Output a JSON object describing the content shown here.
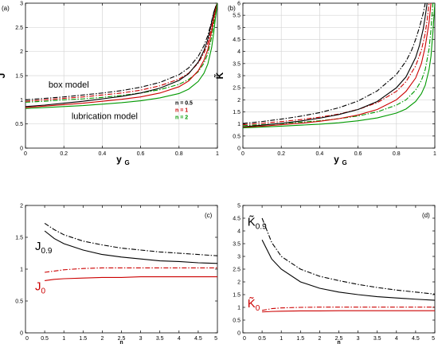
{
  "colors": {
    "n05": "#000000",
    "n1": "#cc0000",
    "n2": "#009900",
    "grid": "#d6d6d6",
    "frame": "#000000"
  },
  "chart_data": [
    {
      "type": "line",
      "panel_label": "(a)",
      "xlabel": "y",
      "xlabel_sub": "G",
      "ylabel": "J",
      "xlim": [
        0,
        1
      ],
      "ylim": [
        0,
        3
      ],
      "xticks": [
        0,
        0.2,
        0.4,
        0.6,
        0.8,
        1
      ],
      "xtick_labels": [
        "0",
        "0.2",
        "0.4",
        "0.6",
        "0.8",
        "1"
      ],
      "yticks": [
        0,
        0.5,
        1,
        1.5,
        2,
        2.5,
        3
      ],
      "ytick_labels": [
        "0",
        "0.5",
        "1",
        "1.5",
        "2",
        "2.5",
        "3"
      ],
      "grid": true,
      "annotations": [
        {
          "text": "box model",
          "x": 0.12,
          "y": 1.25
        },
        {
          "text": "lubrication model",
          "x": 0.24,
          "y": 0.6
        }
      ],
      "legend": {
        "placement": "lower-right",
        "entries": [
          {
            "label": "n = 0.5",
            "color": "#000000"
          },
          {
            "label": "n = 1",
            "color": "#cc0000"
          },
          {
            "label": "n = 2",
            "color": "#009900"
          }
        ]
      },
      "series": [
        {
          "model": "box",
          "n": 0.5,
          "color": "#000000",
          "dash": "dashdot",
          "x": [
            0,
            0.1,
            0.2,
            0.3,
            0.4,
            0.5,
            0.6,
            0.7,
            0.8,
            0.85,
            0.9,
            0.93,
            0.95,
            0.97,
            0.98,
            0.99,
            1.0
          ],
          "y": [
            1.0,
            1.03,
            1.06,
            1.1,
            1.14,
            1.19,
            1.26,
            1.36,
            1.52,
            1.66,
            1.9,
            2.12,
            2.33,
            2.63,
            2.8,
            2.92,
            3.0
          ]
        },
        {
          "model": "box",
          "n": 1,
          "color": "#cc0000",
          "dash": "dashdot",
          "x": [
            0,
            0.1,
            0.2,
            0.3,
            0.4,
            0.5,
            0.6,
            0.7,
            0.8,
            0.85,
            0.9,
            0.93,
            0.95,
            0.97,
            0.98,
            0.99,
            1.0
          ],
          "y": [
            0.97,
            1.0,
            1.03,
            1.06,
            1.1,
            1.14,
            1.2,
            1.29,
            1.43,
            1.55,
            1.76,
            1.97,
            2.17,
            2.5,
            2.7,
            2.88,
            3.0
          ]
        },
        {
          "model": "box",
          "n": 2,
          "color": "#009900",
          "dash": "dashdot",
          "x": [
            0,
            0.1,
            0.2,
            0.3,
            0.4,
            0.5,
            0.6,
            0.7,
            0.8,
            0.85,
            0.9,
            0.93,
            0.95,
            0.97,
            0.98,
            0.99,
            1.0
          ],
          "y": [
            0.95,
            0.97,
            1.0,
            1.02,
            1.05,
            1.09,
            1.14,
            1.21,
            1.32,
            1.42,
            1.58,
            1.76,
            1.95,
            2.3,
            2.55,
            2.82,
            3.0
          ]
        },
        {
          "model": "lubrication",
          "n": 0.5,
          "color": "#000000",
          "dash": "solid",
          "x": [
            0,
            0.1,
            0.2,
            0.3,
            0.4,
            0.5,
            0.6,
            0.7,
            0.8,
            0.85,
            0.9,
            0.93,
            0.95,
            0.97,
            0.98,
            0.99,
            1.0
          ],
          "y": [
            0.86,
            0.89,
            0.93,
            0.97,
            1.02,
            1.07,
            1.14,
            1.24,
            1.4,
            1.54,
            1.78,
            2.02,
            2.25,
            2.6,
            2.78,
            2.92,
            3.0
          ]
        },
        {
          "model": "lubrication",
          "n": 1,
          "color": "#cc0000",
          "dash": "solid",
          "x": [
            0,
            0.1,
            0.2,
            0.3,
            0.4,
            0.5,
            0.6,
            0.7,
            0.8,
            0.85,
            0.9,
            0.93,
            0.95,
            0.97,
            0.98,
            0.99,
            1.0
          ],
          "y": [
            0.84,
            0.87,
            0.9,
            0.93,
            0.97,
            1.01,
            1.06,
            1.14,
            1.27,
            1.39,
            1.6,
            1.82,
            2.04,
            2.42,
            2.65,
            2.86,
            3.0
          ]
        },
        {
          "model": "lubrication",
          "n": 2,
          "color": "#009900",
          "dash": "solid",
          "x": [
            0,
            0.1,
            0.2,
            0.3,
            0.4,
            0.5,
            0.6,
            0.7,
            0.8,
            0.85,
            0.9,
            0.93,
            0.95,
            0.97,
            0.98,
            0.99,
            1.0
          ],
          "y": [
            0.82,
            0.84,
            0.86,
            0.88,
            0.91,
            0.94,
            0.98,
            1.04,
            1.13,
            1.22,
            1.38,
            1.55,
            1.74,
            2.08,
            2.36,
            2.7,
            3.0
          ]
        }
      ]
    },
    {
      "type": "line",
      "panel_label": "(b)",
      "xlabel": "y",
      "xlabel_sub": "G",
      "ylabel": "K̃",
      "xlim": [
        0,
        1
      ],
      "ylim": [
        0,
        6
      ],
      "xticks": [
        0,
        0.2,
        0.4,
        0.6,
        0.8,
        1
      ],
      "xtick_labels": [
        "0",
        "0.2",
        "0.4",
        "0.6",
        "0.8",
        "1"
      ],
      "yticks": [
        0,
        0.5,
        1,
        1.5,
        2,
        2.5,
        3,
        3.5,
        4,
        4.5,
        5,
        5.5,
        6
      ],
      "ytick_labels": [
        "0",
        "0.5",
        "1",
        "1.5",
        "2",
        "2.5",
        "3",
        "3.5",
        "4",
        "4.5",
        "5",
        "5.5",
        "6"
      ],
      "grid": true,
      "series": [
        {
          "model": "box",
          "n": 0.5,
          "color": "#000000",
          "dash": "dashdot",
          "x": [
            0,
            0.1,
            0.2,
            0.3,
            0.4,
            0.5,
            0.6,
            0.7,
            0.8,
            0.85,
            0.88,
            0.9,
            0.92,
            0.94,
            0.95
          ],
          "y": [
            1.02,
            1.1,
            1.2,
            1.32,
            1.47,
            1.67,
            1.95,
            2.37,
            3.05,
            3.6,
            4.07,
            4.5,
            5.0,
            5.6,
            6.0
          ]
        },
        {
          "model": "box",
          "n": 1,
          "color": "#cc0000",
          "dash": "dashdot",
          "x": [
            0,
            0.1,
            0.2,
            0.3,
            0.4,
            0.5,
            0.6,
            0.7,
            0.8,
            0.85,
            0.9,
            0.93,
            0.95,
            0.96,
            0.97
          ],
          "y": [
            0.97,
            1.03,
            1.1,
            1.18,
            1.28,
            1.41,
            1.6,
            1.88,
            2.35,
            2.75,
            3.4,
            4.05,
            4.75,
            5.3,
            6.0
          ]
        },
        {
          "model": "box",
          "n": 2,
          "color": "#009900",
          "dash": "dashdot",
          "x": [
            0,
            0.1,
            0.2,
            0.3,
            0.4,
            0.5,
            0.6,
            0.7,
            0.8,
            0.85,
            0.9,
            0.93,
            0.95,
            0.97,
            0.98,
            0.99
          ],
          "y": [
            0.93,
            0.97,
            1.02,
            1.07,
            1.13,
            1.22,
            1.33,
            1.5,
            1.78,
            2.0,
            2.4,
            2.8,
            3.25,
            4.1,
            4.9,
            6.0
          ]
        },
        {
          "model": "lubrication",
          "n": 0.5,
          "color": "#000000",
          "dash": "solid",
          "x": [
            0,
            0.1,
            0.2,
            0.3,
            0.4,
            0.5,
            0.6,
            0.7,
            0.8,
            0.85,
            0.9,
            0.92,
            0.94,
            0.95,
            0.96
          ],
          "y": [
            0.88,
            0.95,
            1.03,
            1.12,
            1.24,
            1.39,
            1.6,
            1.93,
            2.5,
            2.95,
            3.75,
            4.25,
            4.95,
            5.45,
            6.0
          ]
        },
        {
          "model": "lubrication",
          "n": 1,
          "color": "#cc0000",
          "dash": "solid",
          "x": [
            0,
            0.1,
            0.2,
            0.3,
            0.4,
            0.5,
            0.6,
            0.7,
            0.8,
            0.85,
            0.9,
            0.93,
            0.95,
            0.97,
            0.98
          ],
          "y": [
            0.86,
            0.91,
            0.97,
            1.03,
            1.11,
            1.22,
            1.37,
            1.6,
            2.0,
            2.35,
            2.9,
            3.5,
            4.2,
            5.2,
            6.0
          ]
        },
        {
          "model": "lubrication",
          "n": 2,
          "color": "#009900",
          "dash": "solid",
          "x": [
            0,
            0.1,
            0.2,
            0.3,
            0.4,
            0.5,
            0.6,
            0.7,
            0.8,
            0.85,
            0.9,
            0.93,
            0.95,
            0.97,
            0.98,
            0.99,
            1.0
          ],
          "y": [
            0.84,
            0.87,
            0.91,
            0.95,
            0.99,
            1.05,
            1.13,
            1.25,
            1.45,
            1.62,
            1.93,
            2.25,
            2.6,
            3.25,
            3.8,
            4.8,
            6.0
          ]
        }
      ]
    },
    {
      "type": "line",
      "panel_label": "(c)",
      "xlabel": "n",
      "xlim": [
        0,
        5
      ],
      "ylim": [
        0,
        2
      ],
      "xticks": [
        0,
        0.5,
        1,
        1.5,
        2,
        2.5,
        3,
        3.5,
        4,
        4.5,
        5
      ],
      "xtick_labels": [
        "0",
        "0.5",
        "1",
        "1.5",
        "2",
        "2.5",
        "3",
        "3.5",
        "4",
        "4.5",
        "5"
      ],
      "yticks": [
        0,
        0.5,
        1,
        1.5,
        2
      ],
      "ytick_labels": [
        "0",
        "0.5",
        "1",
        "1.5",
        "2"
      ],
      "grid": false,
      "annotations": [
        {
          "text": "J",
          "sub": "0.9",
          "x": 0.25,
          "y": 1.3,
          "color": "#000000"
        },
        {
          "text": "J",
          "sub": "0",
          "x": 0.25,
          "y": 0.67,
          "color": "#cc0000"
        }
      ],
      "series": [
        {
          "label": "J0.9 box",
          "color": "#000000",
          "dash": "dashdot",
          "x": [
            0.5,
            0.75,
            1,
            1.5,
            2,
            2.5,
            3,
            3.5,
            4,
            4.5,
            5
          ],
          "y": [
            1.72,
            1.62,
            1.54,
            1.44,
            1.38,
            1.33,
            1.3,
            1.27,
            1.25,
            1.23,
            1.21
          ]
        },
        {
          "label": "J0.9 lubrication",
          "color": "#000000",
          "dash": "solid",
          "x": [
            0.5,
            0.75,
            1,
            1.5,
            2,
            2.5,
            3,
            3.5,
            4,
            4.5,
            5
          ],
          "y": [
            1.6,
            1.48,
            1.4,
            1.3,
            1.23,
            1.19,
            1.16,
            1.13,
            1.12,
            1.1,
            1.09
          ]
        },
        {
          "label": "J0 box",
          "color": "#cc0000",
          "dash": "dashdot",
          "x": [
            0.5,
            0.75,
            1,
            1.5,
            2,
            2.5,
            3,
            3.5,
            4,
            4.5,
            5
          ],
          "y": [
            0.95,
            0.97,
            0.99,
            1.01,
            1.02,
            1.02,
            1.02,
            1.02,
            1.02,
            1.02,
            1.02
          ]
        },
        {
          "label": "J0 lubrication",
          "color": "#cc0000",
          "dash": "solid",
          "x": [
            0.5,
            0.75,
            1,
            1.5,
            2,
            2.5,
            3,
            3.5,
            4,
            4.5,
            5
          ],
          "y": [
            0.82,
            0.84,
            0.85,
            0.86,
            0.87,
            0.87,
            0.88,
            0.88,
            0.88,
            0.88,
            0.88
          ]
        }
      ]
    },
    {
      "type": "line",
      "panel_label": "(d)",
      "xlabel": "n",
      "xlim": [
        0,
        5
      ],
      "ylim": [
        0,
        5
      ],
      "xticks": [
        0,
        0.5,
        1,
        1.5,
        2,
        2.5,
        3,
        3.5,
        4,
        4.5,
        5
      ],
      "xtick_labels": [
        "0",
        "0.5",
        "1",
        "1.5",
        "2",
        "2.5",
        "3",
        "3.5",
        "4",
        "4.5",
        "5"
      ],
      "yticks": [
        0,
        0.5,
        1,
        1.5,
        2,
        2.5,
        3,
        3.5,
        4,
        4.5,
        5
      ],
      "ytick_labels": [
        "0",
        "0.5",
        "1",
        "1.5",
        "2",
        "2.5",
        "3",
        "3.5",
        "4",
        "4.5",
        "5"
      ],
      "grid": false,
      "annotations": [
        {
          "text": "K̃",
          "sub": "0.9",
          "x": 0.12,
          "y": 4.2,
          "color": "#000000"
        },
        {
          "text": "K̃",
          "sub": "0",
          "x": 0.12,
          "y": 1.0,
          "color": "#cc0000"
        }
      ],
      "series": [
        {
          "label": "K0.9 box",
          "color": "#000000",
          "dash": "dashdot",
          "x": [
            0.5,
            0.75,
            1,
            1.5,
            2,
            2.5,
            3,
            3.5,
            4,
            4.5,
            5
          ],
          "y": [
            4.5,
            3.55,
            3.0,
            2.5,
            2.22,
            2.05,
            1.9,
            1.78,
            1.68,
            1.6,
            1.52
          ]
        },
        {
          "label": "K0.9 lubrication",
          "color": "#000000",
          "dash": "solid",
          "x": [
            0.5,
            0.75,
            1,
            1.5,
            2,
            2.5,
            3,
            3.5,
            4,
            4.5,
            5
          ],
          "y": [
            3.65,
            2.9,
            2.5,
            2.0,
            1.75,
            1.6,
            1.5,
            1.42,
            1.37,
            1.32,
            1.28
          ]
        },
        {
          "label": "K0 box",
          "color": "#cc0000",
          "dash": "dashdot",
          "x": [
            0.5,
            0.75,
            1,
            1.5,
            2,
            2.5,
            3,
            3.5,
            4,
            4.5,
            5
          ],
          "y": [
            0.88,
            0.95,
            0.98,
            1.0,
            1.01,
            1.01,
            1.01,
            1.01,
            1.01,
            1.01,
            1.01
          ]
        },
        {
          "label": "K0 lubrication",
          "color": "#cc0000",
          "dash": "solid",
          "x": [
            0.5,
            0.75,
            1,
            1.5,
            2,
            2.5,
            3,
            3.5,
            4,
            4.5,
            5
          ],
          "y": [
            0.82,
            0.84,
            0.85,
            0.86,
            0.86,
            0.87,
            0.87,
            0.87,
            0.87,
            0.87,
            0.87
          ]
        }
      ]
    }
  ]
}
